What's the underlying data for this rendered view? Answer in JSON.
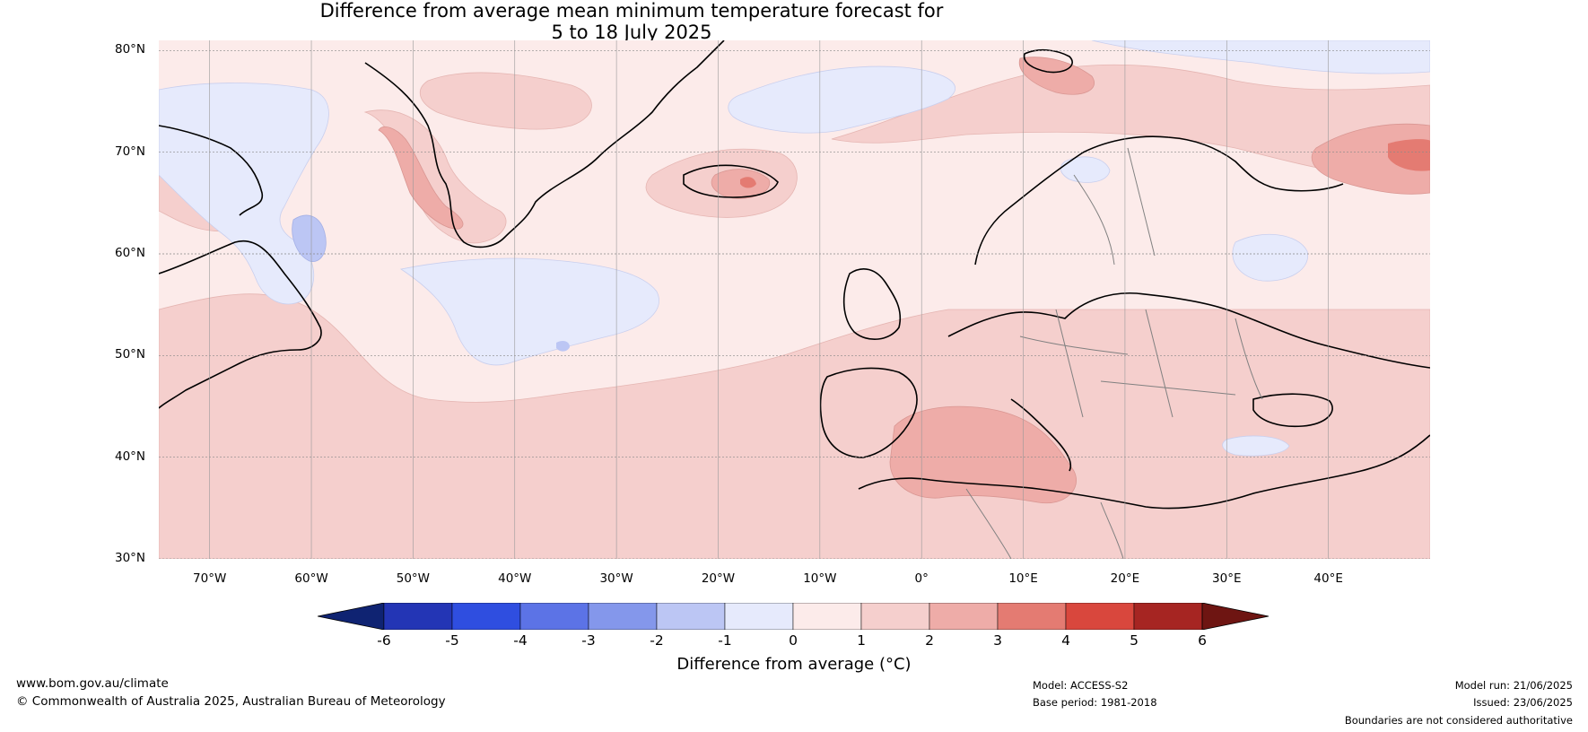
{
  "title": {
    "line1": "Difference from average mean minimum temperature forecast for",
    "line2": "5 to 18 July 2025"
  },
  "map": {
    "latitude_labels": [
      "80°N",
      "70°N",
      "60°N",
      "50°N",
      "40°N",
      "30°N"
    ],
    "longitude_labels": [
      "70°W",
      "60°W",
      "50°W",
      "40°W",
      "30°W",
      "20°W",
      "10°W",
      "0°",
      "10°E",
      "20°E",
      "30°E",
      "40°E"
    ],
    "lon_range": [
      -75,
      50
    ],
    "lat_range": [
      30,
      81
    ]
  },
  "colorbar": {
    "label": "Difference from average (°C)",
    "ticks": [
      "-6",
      "-5",
      "-4",
      "-3",
      "-2",
      "-1",
      "0",
      "1",
      "2",
      "3",
      "4",
      "5",
      "6"
    ],
    "colors": [
      "#0f2372",
      "#2335b5",
      "#2f4ee0",
      "#5c73e6",
      "#8497eb",
      "#bcc6f4",
      "#e6eafc",
      "#fcebea",
      "#f5cfcd",
      "#eeaca8",
      "#e47b72",
      "#d9473d",
      "#a62522",
      "#6e1512"
    ]
  },
  "footer": {
    "website": "www.bom.gov.au/climate",
    "copyright": "© Commonwealth of Australia 2025, Australian Bureau of Meteorology",
    "model": "Model: ACCESS-S2",
    "base_period": "Base period: 1981-2018",
    "model_run": "Model run: 21/06/2025",
    "issued": "Issued: 23/06/2025",
    "disclaimer": "Boundaries are not considered authoritative"
  }
}
